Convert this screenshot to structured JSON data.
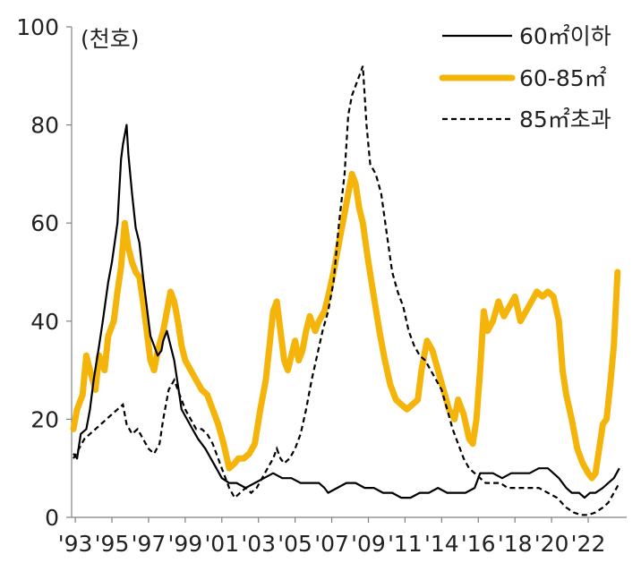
{
  "chart_data": {
    "type": "line",
    "unit_label": "(천호)",
    "y_ticks": [
      "0",
      "20",
      "40",
      "60",
      "80",
      "100"
    ],
    "ylim": [
      0,
      100
    ],
    "xlim": [
      1993.0,
      2023.3
    ],
    "x_tick_labels": [
      {
        "year": 1993.2,
        "label": "'93"
      },
      {
        "year": 1995.2,
        "label": "'95"
      },
      {
        "year": 1997.2,
        "label": "'97"
      },
      {
        "year": 1999.2,
        "label": "'99"
      },
      {
        "year": 2001.2,
        "label": "'01"
      },
      {
        "year": 2003.2,
        "label": "'03"
      },
      {
        "year": 2005.2,
        "label": "'05"
      },
      {
        "year": 2007.2,
        "label": "'07"
      },
      {
        "year": 2009.2,
        "label": "'09"
      },
      {
        "year": 2011.2,
        "label": "'11"
      },
      {
        "year": 2013.2,
        "label": "'14"
      },
      {
        "year": 2015.2,
        "label": "'16"
      },
      {
        "year": 2017.2,
        "label": "'18"
      },
      {
        "year": 2019.2,
        "label": "'20"
      },
      {
        "year": 2021.2,
        "label": "'22"
      }
    ],
    "legend_position": "top-right",
    "series": [
      {
        "name": "60㎡이하",
        "color": "#000000",
        "style": "solid",
        "points": [
          [
            1993.1,
            13
          ],
          [
            1993.3,
            12
          ],
          [
            1993.5,
            17
          ],
          [
            1993.8,
            18
          ],
          [
            1994.0,
            22
          ],
          [
            1994.2,
            28
          ],
          [
            1994.5,
            35
          ],
          [
            1994.7,
            40
          ],
          [
            1995.0,
            48
          ],
          [
            1995.2,
            52
          ],
          [
            1995.5,
            60
          ],
          [
            1995.7,
            73
          ],
          [
            1995.8,
            76
          ],
          [
            1996.0,
            80
          ],
          [
            1996.1,
            74
          ],
          [
            1996.3,
            66
          ],
          [
            1996.5,
            59
          ],
          [
            1996.7,
            56
          ],
          [
            1996.9,
            49
          ],
          [
            1997.1,
            43
          ],
          [
            1997.3,
            37
          ],
          [
            1997.5,
            35
          ],
          [
            1997.7,
            33
          ],
          [
            1997.9,
            34
          ],
          [
            1998.0,
            36
          ],
          [
            1998.2,
            38
          ],
          [
            1998.4,
            35
          ],
          [
            1998.6,
            32
          ],
          [
            1998.8,
            27
          ],
          [
            1999.0,
            22
          ],
          [
            1999.3,
            20
          ],
          [
            1999.6,
            18
          ],
          [
            1999.9,
            16
          ],
          [
            2000.3,
            14
          ],
          [
            2000.6,
            12
          ],
          [
            2000.9,
            10
          ],
          [
            2001.2,
            8
          ],
          [
            2001.6,
            7
          ],
          [
            2002.0,
            7
          ],
          [
            2002.5,
            6
          ],
          [
            2003.0,
            7
          ],
          [
            2003.5,
            8
          ],
          [
            2004.0,
            9
          ],
          [
            2004.5,
            8
          ],
          [
            2005.0,
            8
          ],
          [
            2005.5,
            7
          ],
          [
            2006.0,
            7
          ],
          [
            2006.5,
            7
          ],
          [
            2006.8,
            6
          ],
          [
            2007.0,
            5
          ],
          [
            2007.5,
            6
          ],
          [
            2008.0,
            7
          ],
          [
            2008.5,
            7
          ],
          [
            2009.0,
            6
          ],
          [
            2009.5,
            6
          ],
          [
            2010.0,
            5
          ],
          [
            2010.5,
            5
          ],
          [
            2011.0,
            4
          ],
          [
            2011.5,
            4
          ],
          [
            2012.0,
            5
          ],
          [
            2012.5,
            5
          ],
          [
            2013.0,
            6
          ],
          [
            2013.5,
            5
          ],
          [
            2014.0,
            5
          ],
          [
            2014.5,
            5
          ],
          [
            2015.0,
            6
          ],
          [
            2015.3,
            9
          ],
          [
            2015.6,
            9
          ],
          [
            2016.0,
            9
          ],
          [
            2016.5,
            8
          ],
          [
            2017.0,
            9
          ],
          [
            2017.5,
            9
          ],
          [
            2018.0,
            9
          ],
          [
            2018.5,
            10
          ],
          [
            2019.0,
            10
          ],
          [
            2019.3,
            9
          ],
          [
            2019.6,
            8
          ],
          [
            2020.0,
            6
          ],
          [
            2020.3,
            5
          ],
          [
            2020.7,
            5
          ],
          [
            2021.0,
            4
          ],
          [
            2021.3,
            5
          ],
          [
            2021.6,
            5
          ],
          [
            2022.0,
            6
          ],
          [
            2022.3,
            7
          ],
          [
            2022.6,
            8
          ],
          [
            2022.9,
            10
          ]
        ]
      },
      {
        "name": "60-85㎡",
        "color": "#F5B40A",
        "style": "thick",
        "points": [
          [
            1993.1,
            18
          ],
          [
            1993.3,
            22
          ],
          [
            1993.6,
            25
          ],
          [
            1993.8,
            33
          ],
          [
            1994.0,
            30
          ],
          [
            1994.3,
            26
          ],
          [
            1994.5,
            33
          ],
          [
            1994.8,
            30
          ],
          [
            1995.0,
            37
          ],
          [
            1995.3,
            40
          ],
          [
            1995.5,
            46
          ],
          [
            1995.7,
            51
          ],
          [
            1995.9,
            60
          ],
          [
            1996.1,
            55
          ],
          [
            1996.3,
            52
          ],
          [
            1996.5,
            50
          ],
          [
            1996.7,
            49
          ],
          [
            1996.9,
            44
          ],
          [
            1997.1,
            38
          ],
          [
            1997.3,
            32
          ],
          [
            1997.5,
            30
          ],
          [
            1997.7,
            34
          ],
          [
            1998.0,
            38
          ],
          [
            1998.2,
            42
          ],
          [
            1998.4,
            46
          ],
          [
            1998.6,
            44
          ],
          [
            1998.8,
            40
          ],
          [
            1999.0,
            35
          ],
          [
            1999.2,
            32
          ],
          [
            1999.5,
            30
          ],
          [
            1999.8,
            28
          ],
          [
            2000.1,
            26
          ],
          [
            2000.4,
            25
          ],
          [
            2000.7,
            22
          ],
          [
            2001.0,
            19
          ],
          [
            2001.3,
            15
          ],
          [
            2001.6,
            10
          ],
          [
            2001.9,
            11
          ],
          [
            2002.1,
            12
          ],
          [
            2002.4,
            12
          ],
          [
            2002.7,
            13
          ],
          [
            2003.0,
            15
          ],
          [
            2003.3,
            22
          ],
          [
            2003.6,
            28
          ],
          [
            2003.8,
            35
          ],
          [
            2004.0,
            42
          ],
          [
            2004.2,
            44
          ],
          [
            2004.4,
            38
          ],
          [
            2004.6,
            32
          ],
          [
            2004.8,
            30
          ],
          [
            2005.0,
            33
          ],
          [
            2005.2,
            36
          ],
          [
            2005.4,
            32
          ],
          [
            2005.6,
            34
          ],
          [
            2005.8,
            38
          ],
          [
            2006.0,
            41
          ],
          [
            2006.3,
            38
          ],
          [
            2006.5,
            40
          ],
          [
            2006.8,
            42
          ],
          [
            2007.0,
            45
          ],
          [
            2007.3,
            50
          ],
          [
            2007.6,
            56
          ],
          [
            2007.9,
            62
          ],
          [
            2008.1,
            66
          ],
          [
            2008.3,
            70
          ],
          [
            2008.5,
            68
          ],
          [
            2008.7,
            63
          ],
          [
            2008.9,
            60
          ],
          [
            2009.2,
            52
          ],
          [
            2009.5,
            45
          ],
          [
            2009.8,
            38
          ],
          [
            2010.1,
            32
          ],
          [
            2010.4,
            27
          ],
          [
            2010.7,
            24
          ],
          [
            2011.0,
            23
          ],
          [
            2011.3,
            22
          ],
          [
            2011.6,
            23
          ],
          [
            2011.9,
            24
          ],
          [
            2012.1,
            30
          ],
          [
            2012.4,
            36
          ],
          [
            2012.7,
            34
          ],
          [
            2013.0,
            30
          ],
          [
            2013.3,
            26
          ],
          [
            2013.6,
            22
          ],
          [
            2013.9,
            20
          ],
          [
            2014.1,
            24
          ],
          [
            2014.4,
            21
          ],
          [
            2014.7,
            16
          ],
          [
            2014.9,
            15
          ],
          [
            2015.1,
            20
          ],
          [
            2015.3,
            30
          ],
          [
            2015.5,
            42
          ],
          [
            2015.7,
            38
          ],
          [
            2016.0,
            40
          ],
          [
            2016.3,
            44
          ],
          [
            2016.6,
            41
          ],
          [
            2016.9,
            43
          ],
          [
            2017.2,
            45
          ],
          [
            2017.5,
            40
          ],
          [
            2017.8,
            42
          ],
          [
            2018.1,
            44
          ],
          [
            2018.4,
            46
          ],
          [
            2018.7,
            45
          ],
          [
            2019.0,
            46
          ],
          [
            2019.3,
            45
          ],
          [
            2019.6,
            40
          ],
          [
            2019.8,
            30
          ],
          [
            2020.0,
            25
          ],
          [
            2020.3,
            20
          ],
          [
            2020.6,
            14
          ],
          [
            2020.9,
            11
          ],
          [
            2021.2,
            9
          ],
          [
            2021.4,
            8
          ],
          [
            2021.6,
            9
          ],
          [
            2021.8,
            14
          ],
          [
            2022.0,
            19
          ],
          [
            2022.2,
            20
          ],
          [
            2022.4,
            27
          ],
          [
            2022.6,
            35
          ],
          [
            2022.8,
            50
          ]
        ]
      },
      {
        "name": "85㎡초과",
        "color": "#000000",
        "style": "dashed",
        "points": [
          [
            1993.1,
            12
          ],
          [
            1993.4,
            14
          ],
          [
            1993.7,
            16
          ],
          [
            1994.0,
            17
          ],
          [
            1994.3,
            18
          ],
          [
            1994.6,
            19
          ],
          [
            1994.9,
            20
          ],
          [
            1995.2,
            21
          ],
          [
            1995.5,
            22
          ],
          [
            1995.8,
            23
          ],
          [
            1996.0,
            19
          ],
          [
            1996.3,
            17
          ],
          [
            1996.6,
            18
          ],
          [
            1996.9,
            16
          ],
          [
            1997.2,
            14
          ],
          [
            1997.5,
            13
          ],
          [
            1997.8,
            15
          ],
          [
            1998.0,
            20
          ],
          [
            1998.3,
            26
          ],
          [
            1998.6,
            28
          ],
          [
            1998.9,
            25
          ],
          [
            1999.2,
            22
          ],
          [
            1999.5,
            20
          ],
          [
            1999.8,
            18
          ],
          [
            2000.1,
            18
          ],
          [
            2000.4,
            17
          ],
          [
            2000.7,
            15
          ],
          [
            2001.0,
            12
          ],
          [
            2001.3,
            9
          ],
          [
            2001.6,
            6
          ],
          [
            2001.9,
            4
          ],
          [
            2002.2,
            5
          ],
          [
            2002.5,
            6
          ],
          [
            2002.8,
            5
          ],
          [
            2003.1,
            6
          ],
          [
            2003.4,
            8
          ],
          [
            2003.7,
            10
          ],
          [
            2004.0,
            12
          ],
          [
            2004.2,
            14
          ],
          [
            2004.4,
            12
          ],
          [
            2004.6,
            11
          ],
          [
            2004.9,
            12
          ],
          [
            2005.2,
            14
          ],
          [
            2005.5,
            17
          ],
          [
            2005.8,
            22
          ],
          [
            2006.1,
            28
          ],
          [
            2006.4,
            33
          ],
          [
            2006.7,
            38
          ],
          [
            2007.0,
            42
          ],
          [
            2007.3,
            48
          ],
          [
            2007.6,
            60
          ],
          [
            2007.9,
            70
          ],
          [
            2008.1,
            82
          ],
          [
            2008.3,
            86
          ],
          [
            2008.5,
            88
          ],
          [
            2008.7,
            90
          ],
          [
            2008.9,
            92
          ],
          [
            2009.1,
            80
          ],
          [
            2009.3,
            72
          ],
          [
            2009.6,
            70
          ],
          [
            2009.9,
            66
          ],
          [
            2010.2,
            58
          ],
          [
            2010.5,
            50
          ],
          [
            2010.8,
            46
          ],
          [
            2011.1,
            43
          ],
          [
            2011.4,
            38
          ],
          [
            2011.7,
            35
          ],
          [
            2012.0,
            33
          ],
          [
            2012.3,
            32
          ],
          [
            2012.6,
            30
          ],
          [
            2012.9,
            28
          ],
          [
            2013.2,
            26
          ],
          [
            2013.5,
            22
          ],
          [
            2013.8,
            18
          ],
          [
            2014.1,
            15
          ],
          [
            2014.4,
            12
          ],
          [
            2014.7,
            10
          ],
          [
            2015.0,
            9
          ],
          [
            2015.3,
            8
          ],
          [
            2015.6,
            7
          ],
          [
            2016.0,
            7
          ],
          [
            2016.4,
            7
          ],
          [
            2016.8,
            6
          ],
          [
            2017.2,
            6
          ],
          [
            2017.6,
            6
          ],
          [
            2018.0,
            6
          ],
          [
            2018.5,
            6
          ],
          [
            2019.0,
            5
          ],
          [
            2019.5,
            4
          ],
          [
            2020.0,
            2
          ],
          [
            2020.4,
            1
          ],
          [
            2020.8,
            0.5
          ],
          [
            2021.2,
            0.5
          ],
          [
            2021.6,
            1
          ],
          [
            2022.0,
            2
          ],
          [
            2022.3,
            3
          ],
          [
            2022.6,
            5
          ],
          [
            2022.9,
            7
          ]
        ]
      }
    ]
  }
}
